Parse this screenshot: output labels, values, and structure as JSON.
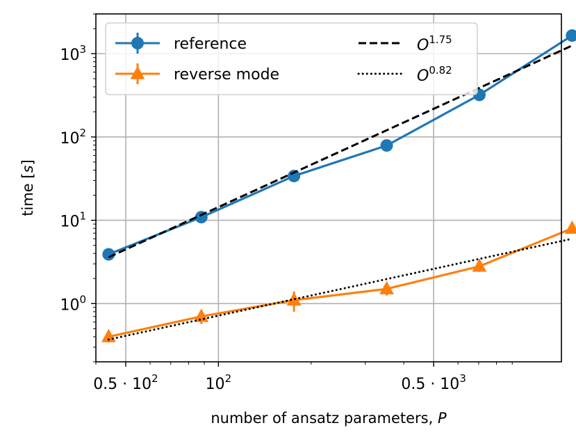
{
  "chart_data": {
    "type": "line",
    "title": "",
    "xlabel": "number of ansatz parameters, P",
    "ylabel": "time [s]",
    "xscale": "log",
    "yscale": "log",
    "xlim": [
      40,
      1300
    ],
    "ylim": [
      0.2,
      3000
    ],
    "grid": true,
    "legend_position": "top-left",
    "x_tick_labels": [
      {
        "value": 50,
        "base": "0.5 · 10",
        "exp": "2"
      },
      {
        "value": 100,
        "base": "10",
        "exp": "2"
      },
      {
        "value": 500,
        "base": "0.5 · 10",
        "exp": "3"
      }
    ],
    "y_tick_labels": [
      {
        "value": 1,
        "base": "10",
        "exp": "0"
      },
      {
        "value": 10,
        "base": "10",
        "exp": "1"
      },
      {
        "value": 100,
        "base": "10",
        "exp": "2"
      },
      {
        "value": 1000,
        "base": "10",
        "exp": "3"
      }
    ],
    "series": [
      {
        "name": "reference",
        "color": "#1f77b4",
        "marker": "circle",
        "x": [
          44,
          88,
          176,
          352,
          704,
          1408
        ],
        "y": [
          3.9,
          10.9,
          34,
          79,
          320,
          1650
        ],
        "err": [
          0.3,
          0.6,
          4,
          5,
          25,
          60
        ]
      },
      {
        "name": "reverse mode",
        "color": "#ff7f0e",
        "marker": "triangle",
        "x": [
          44,
          88,
          176,
          352,
          704,
          1408
        ],
        "y": [
          0.4,
          0.7,
          1.1,
          1.5,
          2.8,
          8.0
        ],
        "err": [
          0.06,
          0.13,
          0.3,
          0.25,
          0.4,
          0.8
        ]
      },
      {
        "name": "O^1.75",
        "label_base": "O",
        "label_exp": "1.75",
        "color": "#000000",
        "style": "dashed",
        "x": [
          44,
          1408
        ],
        "y": [
          3.6,
          1250
        ]
      },
      {
        "name": "O^0.82",
        "label_base": "O",
        "label_exp": "0.82",
        "color": "#000000",
        "style": "dotted",
        "x": [
          44,
          1408
        ],
        "y": [
          0.37,
          6.0
        ]
      }
    ]
  }
}
